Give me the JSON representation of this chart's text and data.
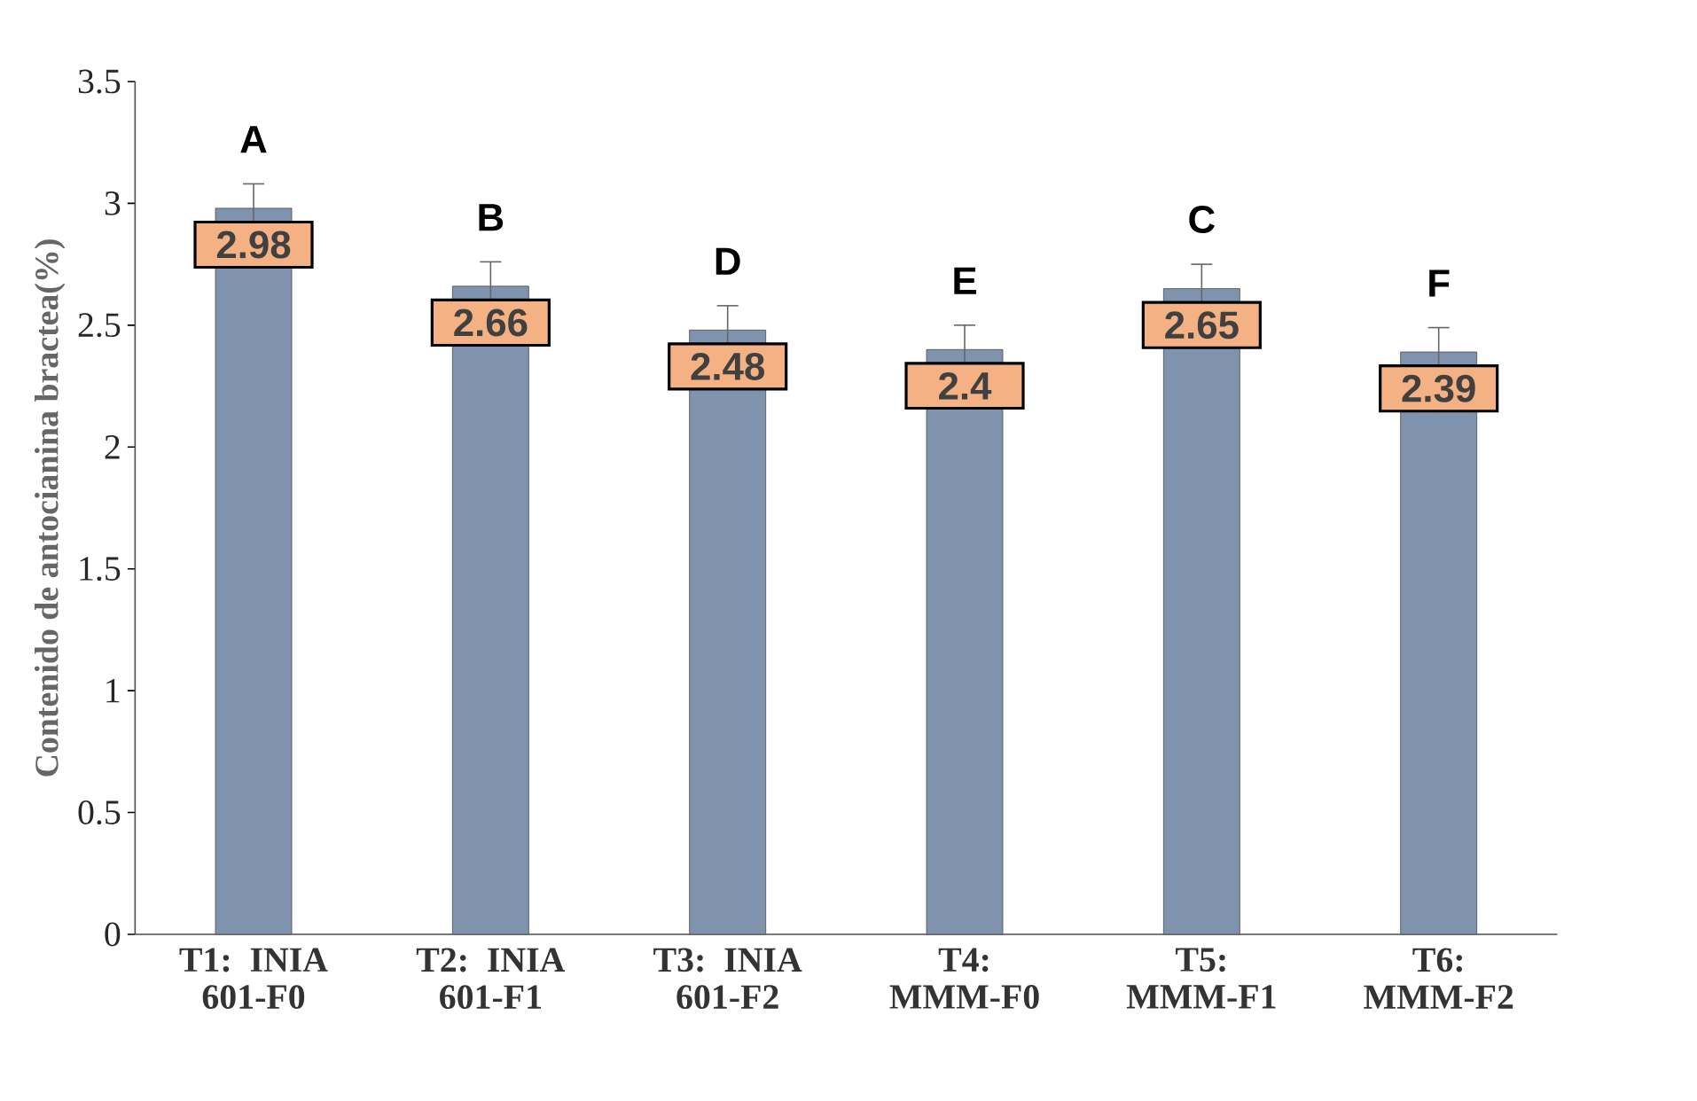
{
  "chart_data": {
    "type": "bar",
    "ylabel": "Contenido de antocianina bractea(%)",
    "categories": [
      "T1: INIA 601-F0",
      "T2: INIA 601-F1",
      "T3: INIA 601-F2",
      "T4: MMM-F0",
      "T5: MMM-F1",
      "T6: MMM-F2"
    ],
    "values": [
      2.98,
      2.66,
      2.48,
      2.4,
      2.65,
      2.39
    ],
    "errors": [
      0.1,
      0.1,
      0.1,
      0.1,
      0.1,
      0.1
    ],
    "color": "#7f93ae",
    "ylim": [
      0,
      3.5
    ],
    "yticks": [
      0,
      0.5,
      1,
      1.5,
      2,
      2.5,
      3,
      3.5
    ],
    "data_labels": true,
    "annotations": [
      "A",
      "B",
      "D",
      "E",
      "C",
      "F"
    ]
  }
}
